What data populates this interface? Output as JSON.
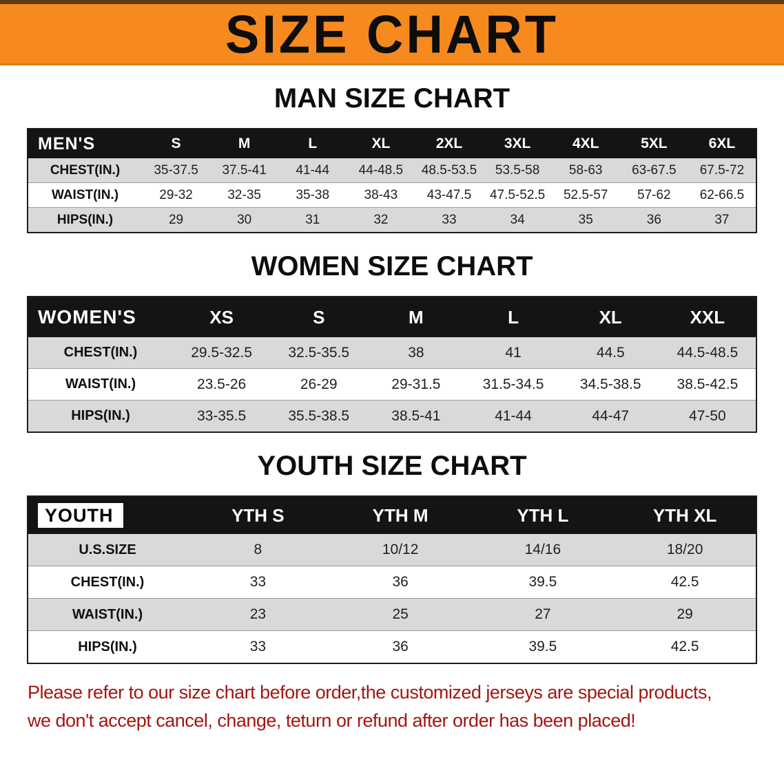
{
  "banner": {
    "title": "SIZE CHART",
    "bg": "#f68a1e"
  },
  "sections": [
    {
      "heading": "MAN SIZE CHART",
      "table": {
        "corner": "MEN'S",
        "columns": [
          "S",
          "M",
          "L",
          "XL",
          "2XL",
          "3XL",
          "4XL",
          "5XL",
          "6XL"
        ],
        "rows": [
          {
            "label": "CHEST(IN.)",
            "values": [
              "35-37.5",
              "37.5-41",
              "41-44",
              "44-48.5",
              "48.5-53.5",
              "53.5-58",
              "58-63",
              "63-67.5",
              "67.5-72"
            ]
          },
          {
            "label": "WAIST(IN.)",
            "values": [
              "29-32",
              "32-35",
              "35-38",
              "38-43",
              "43-47.5",
              "47.5-52.5",
              "52.5-57",
              "57-62",
              "62-66.5"
            ]
          },
          {
            "label": "HIPS(IN.)",
            "values": [
              "29",
              "30",
              "31",
              "32",
              "33",
              "34",
              "35",
              "36",
              "37"
            ]
          }
        ]
      }
    },
    {
      "heading": "WOMEN SIZE CHART",
      "table": {
        "corner": "WOMEN'S",
        "columns": [
          "XS",
          "S",
          "M",
          "L",
          "XL",
          "XXL"
        ],
        "rows": [
          {
            "label": "CHEST(IN.)",
            "values": [
              "29.5-32.5",
              "32.5-35.5",
              "38",
              "41",
              "44.5",
              "44.5-48.5"
            ]
          },
          {
            "label": "WAIST(IN.)",
            "values": [
              "23.5-26",
              "26-29",
              "29-31.5",
              "31.5-34.5",
              "34.5-38.5",
              "38.5-42.5"
            ]
          },
          {
            "label": "HIPS(IN.)",
            "values": [
              "33-35.5",
              "35.5-38.5",
              "38.5-41",
              "41-44",
              "44-47",
              "47-50"
            ]
          }
        ]
      }
    },
    {
      "heading": "YOUTH SIZE CHART",
      "table": {
        "corner": "YOUTH",
        "columns": [
          "YTH S",
          "YTH M",
          "YTH L",
          "YTH XL"
        ],
        "rows": [
          {
            "label": "U.S.SIZE",
            "values": [
              "8",
              "10/12",
              "14/16",
              "18/20"
            ]
          },
          {
            "label": "CHEST(IN.)",
            "values": [
              "33",
              "36",
              "39.5",
              "42.5"
            ]
          },
          {
            "label": "WAIST(IN.)",
            "values": [
              "23",
              "25",
              "27",
              "29"
            ]
          },
          {
            "label": "HIPS(IN.)",
            "values": [
              "33",
              "36",
              "39.5",
              "42.5"
            ]
          }
        ]
      }
    }
  ],
  "footer": {
    "line1": "Please refer to our size chart before order,the customized jerseys are special products,",
    "line2": "we don't accept cancel, change, teturn or refund after order has been placed!",
    "color": "#a41510"
  }
}
